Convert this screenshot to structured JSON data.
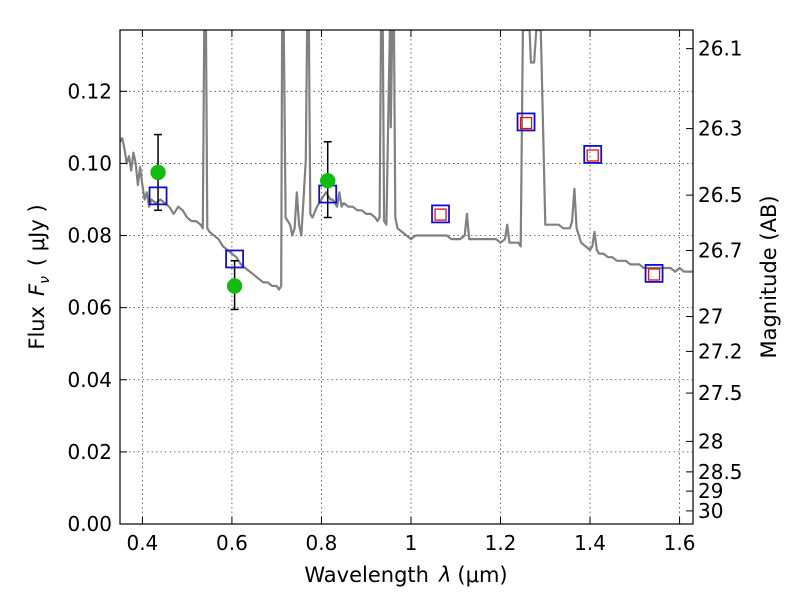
{
  "chart_data": {
    "type": "scatter",
    "xlabel_prefix": "Wavelength",
    "xlabel_symbol": "λ",
    "xlabel_unit": "(μm)",
    "ylabel_prefix": "Flux",
    "ylabel_symbol": "F",
    "ylabel_subscript": "ν",
    "ylabel_unit": "( μJy )",
    "y2label": "Magnitude (AB)",
    "xlim": [
      0.35,
      1.63
    ],
    "ylim": [
      0.0,
      0.137
    ],
    "x_ticks": [
      0.4,
      0.6,
      0.8,
      1.0,
      1.2,
      1.4,
      1.6
    ],
    "x_tick_labels": [
      "0.4",
      "0.6",
      "0.8",
      "1",
      "1.2",
      "1.4",
      "1.6"
    ],
    "y_ticks": [
      0.0,
      0.02,
      0.04,
      0.06,
      0.08,
      0.1,
      0.12
    ],
    "y_tick_labels": [
      "0.00",
      "0.02",
      "0.04",
      "0.06",
      "0.08",
      "0.10",
      "0.12"
    ],
    "y2_ticks": [
      26.1,
      26.3,
      26.5,
      26.7,
      27,
      27.2,
      27.5,
      28,
      28.5,
      29,
      30
    ],
    "y2_tick_labels": [
      "26.1",
      "26.3",
      "26.5",
      "26.7",
      "27",
      "27.2",
      "27.5",
      "28",
      "28.5",
      "29",
      "30"
    ],
    "grid": true,
    "colors": {
      "model": "#808080",
      "observed": "#11bb11",
      "model_flux": "#1010cc",
      "observed_nir": "#dd1111",
      "errorbar": "#000000"
    },
    "model_spectrum": [
      [
        0.35,
        0.106
      ],
      [
        0.355,
        0.107
      ],
      [
        0.36,
        0.104
      ],
      [
        0.365,
        0.1
      ],
      [
        0.37,
        0.102
      ],
      [
        0.375,
        0.098
      ],
      [
        0.38,
        0.103
      ],
      [
        0.385,
        0.1
      ],
      [
        0.39,
        0.094
      ],
      [
        0.395,
        0.099
      ],
      [
        0.4,
        0.094
      ],
      [
        0.405,
        0.09
      ],
      [
        0.41,
        0.092
      ],
      [
        0.415,
        0.088
      ],
      [
        0.42,
        0.09
      ],
      [
        0.43,
        0.089
      ],
      [
        0.44,
        0.09
      ],
      [
        0.45,
        0.089
      ],
      [
        0.46,
        0.088
      ],
      [
        0.47,
        0.086
      ],
      [
        0.48,
        0.088
      ],
      [
        0.49,
        0.087
      ],
      [
        0.5,
        0.085
      ],
      [
        0.51,
        0.084
      ],
      [
        0.52,
        0.084
      ],
      [
        0.53,
        0.083
      ],
      [
        0.535,
        0.082
      ],
      [
        0.538,
        0.137
      ],
      [
        0.542,
        0.137
      ],
      [
        0.545,
        0.082
      ],
      [
        0.55,
        0.081
      ],
      [
        0.56,
        0.08
      ],
      [
        0.57,
        0.079
      ],
      [
        0.58,
        0.077
      ],
      [
        0.59,
        0.076
      ],
      [
        0.6,
        0.075
      ],
      [
        0.61,
        0.074
      ],
      [
        0.62,
        0.072
      ],
      [
        0.63,
        0.071
      ],
      [
        0.64,
        0.07
      ],
      [
        0.65,
        0.069
      ],
      [
        0.66,
        0.068
      ],
      [
        0.67,
        0.067
      ],
      [
        0.68,
        0.067
      ],
      [
        0.69,
        0.066
      ],
      [
        0.7,
        0.066
      ],
      [
        0.705,
        0.065
      ],
      [
        0.71,
        0.066
      ],
      [
        0.712,
        0.137
      ],
      [
        0.716,
        0.137
      ],
      [
        0.72,
        0.085
      ],
      [
        0.73,
        0.083
      ],
      [
        0.735,
        0.08
      ],
      [
        0.74,
        0.082
      ],
      [
        0.745,
        0.092
      ],
      [
        0.75,
        0.083
      ],
      [
        0.755,
        0.08
      ],
      [
        0.76,
        0.09
      ],
      [
        0.765,
        0.101
      ],
      [
        0.768,
        0.137
      ],
      [
        0.772,
        0.137
      ],
      [
        0.775,
        0.086
      ],
      [
        0.78,
        0.085
      ],
      [
        0.79,
        0.088
      ],
      [
        0.8,
        0.09
      ],
      [
        0.81,
        0.092
      ],
      [
        0.815,
        0.091
      ],
      [
        0.82,
        0.09
      ],
      [
        0.825,
        0.09
      ],
      [
        0.83,
        0.089
      ],
      [
        0.835,
        0.088
      ],
      [
        0.84,
        0.092
      ],
      [
        0.845,
        0.088
      ],
      [
        0.85,
        0.089
      ],
      [
        0.86,
        0.088
      ],
      [
        0.87,
        0.088
      ],
      [
        0.88,
        0.087
      ],
      [
        0.89,
        0.087
      ],
      [
        0.9,
        0.086
      ],
      [
        0.91,
        0.086
      ],
      [
        0.92,
        0.085
      ],
      [
        0.925,
        0.084
      ],
      [
        0.93,
        0.085
      ],
      [
        0.933,
        0.137
      ],
      [
        0.937,
        0.137
      ],
      [
        0.94,
        0.084
      ],
      [
        0.945,
        0.083
      ],
      [
        0.95,
        0.118
      ],
      [
        0.953,
        0.137
      ],
      [
        0.955,
        0.11
      ],
      [
        0.958,
        0.137
      ],
      [
        0.962,
        0.137
      ],
      [
        0.965,
        0.085
      ],
      [
        0.97,
        0.082
      ],
      [
        0.98,
        0.081
      ],
      [
        0.99,
        0.08
      ],
      [
        1.0,
        0.079
      ],
      [
        1.01,
        0.08
      ],
      [
        1.02,
        0.08
      ],
      [
        1.03,
        0.08
      ],
      [
        1.04,
        0.08
      ],
      [
        1.05,
        0.08
      ],
      [
        1.06,
        0.08
      ],
      [
        1.07,
        0.08
      ],
      [
        1.08,
        0.08
      ],
      [
        1.09,
        0.079
      ],
      [
        1.1,
        0.079
      ],
      [
        1.11,
        0.079
      ],
      [
        1.12,
        0.08
      ],
      [
        1.125,
        0.086
      ],
      [
        1.13,
        0.079
      ],
      [
        1.14,
        0.079
      ],
      [
        1.15,
        0.079
      ],
      [
        1.16,
        0.079
      ],
      [
        1.17,
        0.079
      ],
      [
        1.18,
        0.079
      ],
      [
        1.19,
        0.079
      ],
      [
        1.2,
        0.078
      ],
      [
        1.21,
        0.079
      ],
      [
        1.215,
        0.083
      ],
      [
        1.22,
        0.078
      ],
      [
        1.23,
        0.078
      ],
      [
        1.24,
        0.078
      ],
      [
        1.245,
        0.077
      ],
      [
        1.25,
        0.137
      ],
      [
        1.265,
        0.137
      ],
      [
        1.268,
        0.128
      ],
      [
        1.275,
        0.128
      ],
      [
        1.28,
        0.137
      ],
      [
        1.29,
        0.137
      ],
      [
        1.3,
        0.083
      ],
      [
        1.31,
        0.083
      ],
      [
        1.32,
        0.083
      ],
      [
        1.33,
        0.083
      ],
      [
        1.34,
        0.082
      ],
      [
        1.35,
        0.082
      ],
      [
        1.355,
        0.082
      ],
      [
        1.36,
        0.084
      ],
      [
        1.365,
        0.093
      ],
      [
        1.37,
        0.082
      ],
      [
        1.38,
        0.078
      ],
      [
        1.39,
        0.077
      ],
      [
        1.4,
        0.076
      ],
      [
        1.405,
        0.077
      ],
      [
        1.41,
        0.081
      ],
      [
        1.415,
        0.076
      ],
      [
        1.42,
        0.075
      ],
      [
        1.43,
        0.075
      ],
      [
        1.44,
        0.074
      ],
      [
        1.45,
        0.074
      ],
      [
        1.46,
        0.073
      ],
      [
        1.47,
        0.073
      ],
      [
        1.48,
        0.073
      ],
      [
        1.49,
        0.072
      ],
      [
        1.5,
        0.072
      ],
      [
        1.51,
        0.072
      ],
      [
        1.52,
        0.071
      ],
      [
        1.53,
        0.071
      ],
      [
        1.54,
        0.071
      ],
      [
        1.55,
        0.071
      ],
      [
        1.56,
        0.071
      ],
      [
        1.57,
        0.071
      ],
      [
        1.58,
        0.071
      ],
      [
        1.59,
        0.07
      ],
      [
        1.6,
        0.071
      ],
      [
        1.61,
        0.07
      ],
      [
        1.62,
        0.07
      ],
      [
        1.63,
        0.07
      ]
    ],
    "series": [
      {
        "marker": "circle",
        "points": [
          {
            "x": 0.435,
            "y": 0.0975,
            "yerr_low": 0.087,
            "yerr_high": 0.108
          },
          {
            "x": 0.606,
            "y": 0.066,
            "yerr_low": 0.0595,
            "yerr_high": 0.073
          },
          {
            "x": 0.814,
            "y": 0.0952,
            "yerr_low": 0.085,
            "yerr_high": 0.106
          }
        ]
      },
      {
        "marker": "square",
        "points": [
          {
            "x": 0.435,
            "y": 0.091
          },
          {
            "x": 0.606,
            "y": 0.0735
          },
          {
            "x": 0.814,
            "y": 0.0915
          },
          {
            "x": 1.066,
            "y": 0.086
          },
          {
            "x": 1.257,
            "y": 0.1115
          },
          {
            "x": 1.406,
            "y": 0.1025
          },
          {
            "x": 1.543,
            "y": 0.0695
          }
        ]
      },
      {
        "marker": "square-small",
        "points": [
          {
            "x": 1.066,
            "y": 0.0858
          },
          {
            "x": 1.257,
            "y": 0.1112
          },
          {
            "x": 1.406,
            "y": 0.1022
          },
          {
            "x": 1.543,
            "y": 0.0692
          }
        ]
      }
    ]
  }
}
